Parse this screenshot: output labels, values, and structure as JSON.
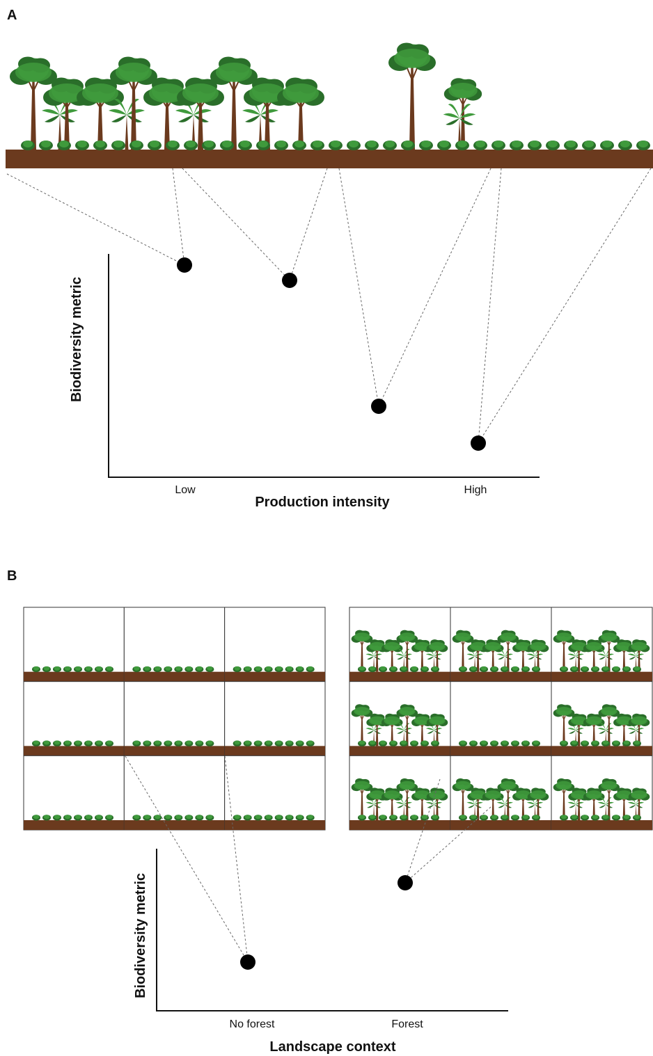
{
  "panel_a": {
    "label": "A",
    "y_axis_label": "Biodiversity metric",
    "x_axis_label": "Production intensity",
    "x_low_label": "Low",
    "x_high_label": "High"
  },
  "panel_b": {
    "label": "B",
    "y_axis_label": "Biodiversity metric",
    "x_axis_label": "Landscape context",
    "categories": [
      "No forest",
      "Forest"
    ]
  }
}
